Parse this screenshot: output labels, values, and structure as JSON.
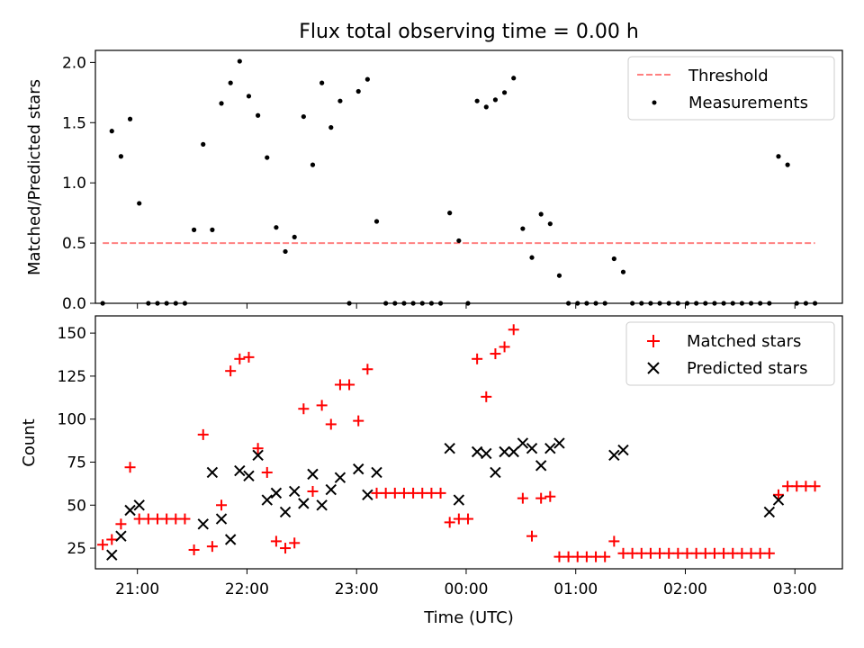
{
  "title": "Flux total observing time = 0.00 h",
  "chart_data": [
    {
      "type": "scatter",
      "ylabel": "Matched/Predicted stars",
      "ylim": [
        0,
        2.1
      ],
      "yticks": [
        0,
        0.5,
        1.0,
        1.5,
        2.0
      ],
      "ytick_labels": [
        "0.0",
        "0.5",
        "1.0",
        "1.5",
        "2.0"
      ],
      "legend_position": "upper right",
      "threshold": {
        "name": "Threshold",
        "y": 0.5,
        "x_range": [
          "20:41",
          "03:11"
        ],
        "color": "#ff8080",
        "style": "dashed"
      },
      "series": [
        {
          "name": "Measurements",
          "marker": "dot",
          "color": "#000000",
          "x": [
            "20:41",
            "20:46",
            "20:51",
            "20:56",
            "21:01",
            "21:06",
            "21:11",
            "21:16",
            "21:21",
            "21:26",
            "21:31",
            "21:36",
            "21:41",
            "21:46",
            "21:51",
            "21:56",
            "22:01",
            "22:06",
            "22:11",
            "22:16",
            "22:21",
            "22:26",
            "22:31",
            "22:36",
            "22:41",
            "22:46",
            "22:51",
            "22:56",
            "23:01",
            "23:06",
            "23:11",
            "23:16",
            "23:21",
            "23:26",
            "23:31",
            "23:36",
            "23:41",
            "23:46",
            "23:51",
            "23:56",
            "00:01",
            "00:06",
            "00:11",
            "00:16",
            "00:21",
            "00:26",
            "00:31",
            "00:36",
            "00:41",
            "00:46",
            "00:51",
            "00:56",
            "01:01",
            "01:06",
            "01:11",
            "01:16",
            "01:21",
            "01:26",
            "01:31",
            "01:36",
            "01:41",
            "01:46",
            "01:51",
            "01:56",
            "02:01",
            "02:06",
            "02:11",
            "02:16",
            "02:21",
            "02:26",
            "02:31",
            "02:36",
            "02:41",
            "02:46",
            "02:51",
            "02:56",
            "03:01",
            "03:06",
            "03:11"
          ],
          "y": [
            0,
            1.43,
            1.22,
            1.53,
            0.83,
            0,
            0,
            0,
            0,
            0,
            0.61,
            1.32,
            0.61,
            1.66,
            1.83,
            2.01,
            1.72,
            1.56,
            1.21,
            0.63,
            0.43,
            0.55,
            1.55,
            1.15,
            1.83,
            1.46,
            1.68,
            0,
            1.76,
            1.86,
            0.68,
            0,
            0,
            0,
            0,
            0,
            0,
            0,
            0.75,
            0.52,
            0,
            1.68,
            1.63,
            1.69,
            1.75,
            1.87,
            0.62,
            0.38,
            0.74,
            0.66,
            0.23,
            0,
            0,
            0,
            0,
            0,
            0.37,
            0.26,
            0,
            0,
            0,
            0,
            0,
            0,
            0,
            0,
            0,
            0,
            0,
            0,
            0,
            0,
            0,
            0,
            1.22,
            1.15,
            0,
            0,
            0
          ]
        }
      ]
    },
    {
      "type": "scatter",
      "xlabel": "Time (UTC)",
      "ylabel": "Count",
      "ylim": [
        13,
        160
      ],
      "yticks": [
        25,
        50,
        75,
        100,
        125,
        150
      ],
      "xlim": [
        "20:37",
        "03:26"
      ],
      "xticks": [
        "21:00",
        "22:00",
        "23:00",
        "00:00",
        "01:00",
        "02:00",
        "03:00"
      ],
      "legend_position": "upper right",
      "series": [
        {
          "name": "Matched stars",
          "marker": "+",
          "color": "#ff0000",
          "x": [
            "20:41",
            "20:46",
            "20:51",
            "20:56",
            "21:01",
            "21:06",
            "21:11",
            "21:16",
            "21:21",
            "21:26",
            "21:31",
            "21:36",
            "21:41",
            "21:46",
            "21:51",
            "21:56",
            "22:01",
            "22:06",
            "22:11",
            "22:16",
            "22:21",
            "22:26",
            "22:31",
            "22:36",
            "22:41",
            "22:46",
            "22:51",
            "22:56",
            "23:01",
            "23:06",
            "23:11",
            "23:16",
            "23:21",
            "23:26",
            "23:31",
            "23:36",
            "23:41",
            "23:46",
            "23:51",
            "23:56",
            "00:01",
            "00:06",
            "00:11",
            "00:16",
            "00:21",
            "00:26",
            "00:31",
            "00:36",
            "00:41",
            "00:46",
            "00:51",
            "00:56",
            "01:01",
            "01:06",
            "01:11",
            "01:16",
            "01:21",
            "01:26",
            "01:31",
            "01:36",
            "01:41",
            "01:46",
            "01:51",
            "01:56",
            "02:01",
            "02:06",
            "02:11",
            "02:16",
            "02:21",
            "02:26",
            "02:31",
            "02:36",
            "02:41",
            "02:46",
            "02:51",
            "02:56",
            "03:01",
            "03:06",
            "03:11"
          ],
          "y": [
            27,
            30,
            39,
            72,
            42,
            42,
            42,
            42,
            42,
            42,
            24,
            91,
            26,
            50,
            128,
            135,
            136,
            83,
            69,
            29,
            25,
            28,
            106,
            58,
            108,
            97,
            120,
            120,
            99,
            129,
            57,
            57,
            57,
            57,
            57,
            57,
            57,
            57,
            40,
            42,
            42,
            135,
            113,
            138,
            142,
            152,
            54,
            32,
            54,
            55,
            20,
            20,
            20,
            20,
            20,
            20,
            29,
            22,
            22,
            22,
            22,
            22,
            22,
            22,
            22,
            22,
            22,
            22,
            22,
            22,
            22,
            22,
            22,
            22,
            56,
            61,
            61,
            61,
            61
          ]
        },
        {
          "name": "Predicted stars",
          "marker": "x",
          "color": "#000000",
          "x": [
            "20:46",
            "20:51",
            "20:56",
            "21:01",
            "21:36",
            "21:41",
            "21:46",
            "21:51",
            "21:56",
            "22:01",
            "22:06",
            "22:11",
            "22:16",
            "22:21",
            "22:26",
            "22:31",
            "22:36",
            "22:41",
            "22:46",
            "22:51",
            "23:01",
            "23:06",
            "23:11",
            "23:51",
            "23:56",
            "00:06",
            "00:11",
            "00:16",
            "00:21",
            "00:26",
            "00:31",
            "00:36",
            "00:41",
            "00:46",
            "00:51",
            "01:21",
            "01:26",
            "02:46",
            "02:51"
          ],
          "y": [
            21,
            32,
            47,
            50,
            39,
            69,
            42,
            30,
            70,
            67,
            79,
            53,
            57,
            46,
            58,
            51,
            68,
            50,
            59,
            66,
            71,
            56,
            69,
            83,
            53,
            81,
            80,
            69,
            81,
            81,
            86,
            83,
            73,
            83,
            86,
            79,
            82,
            46,
            53
          ]
        }
      ]
    }
  ]
}
